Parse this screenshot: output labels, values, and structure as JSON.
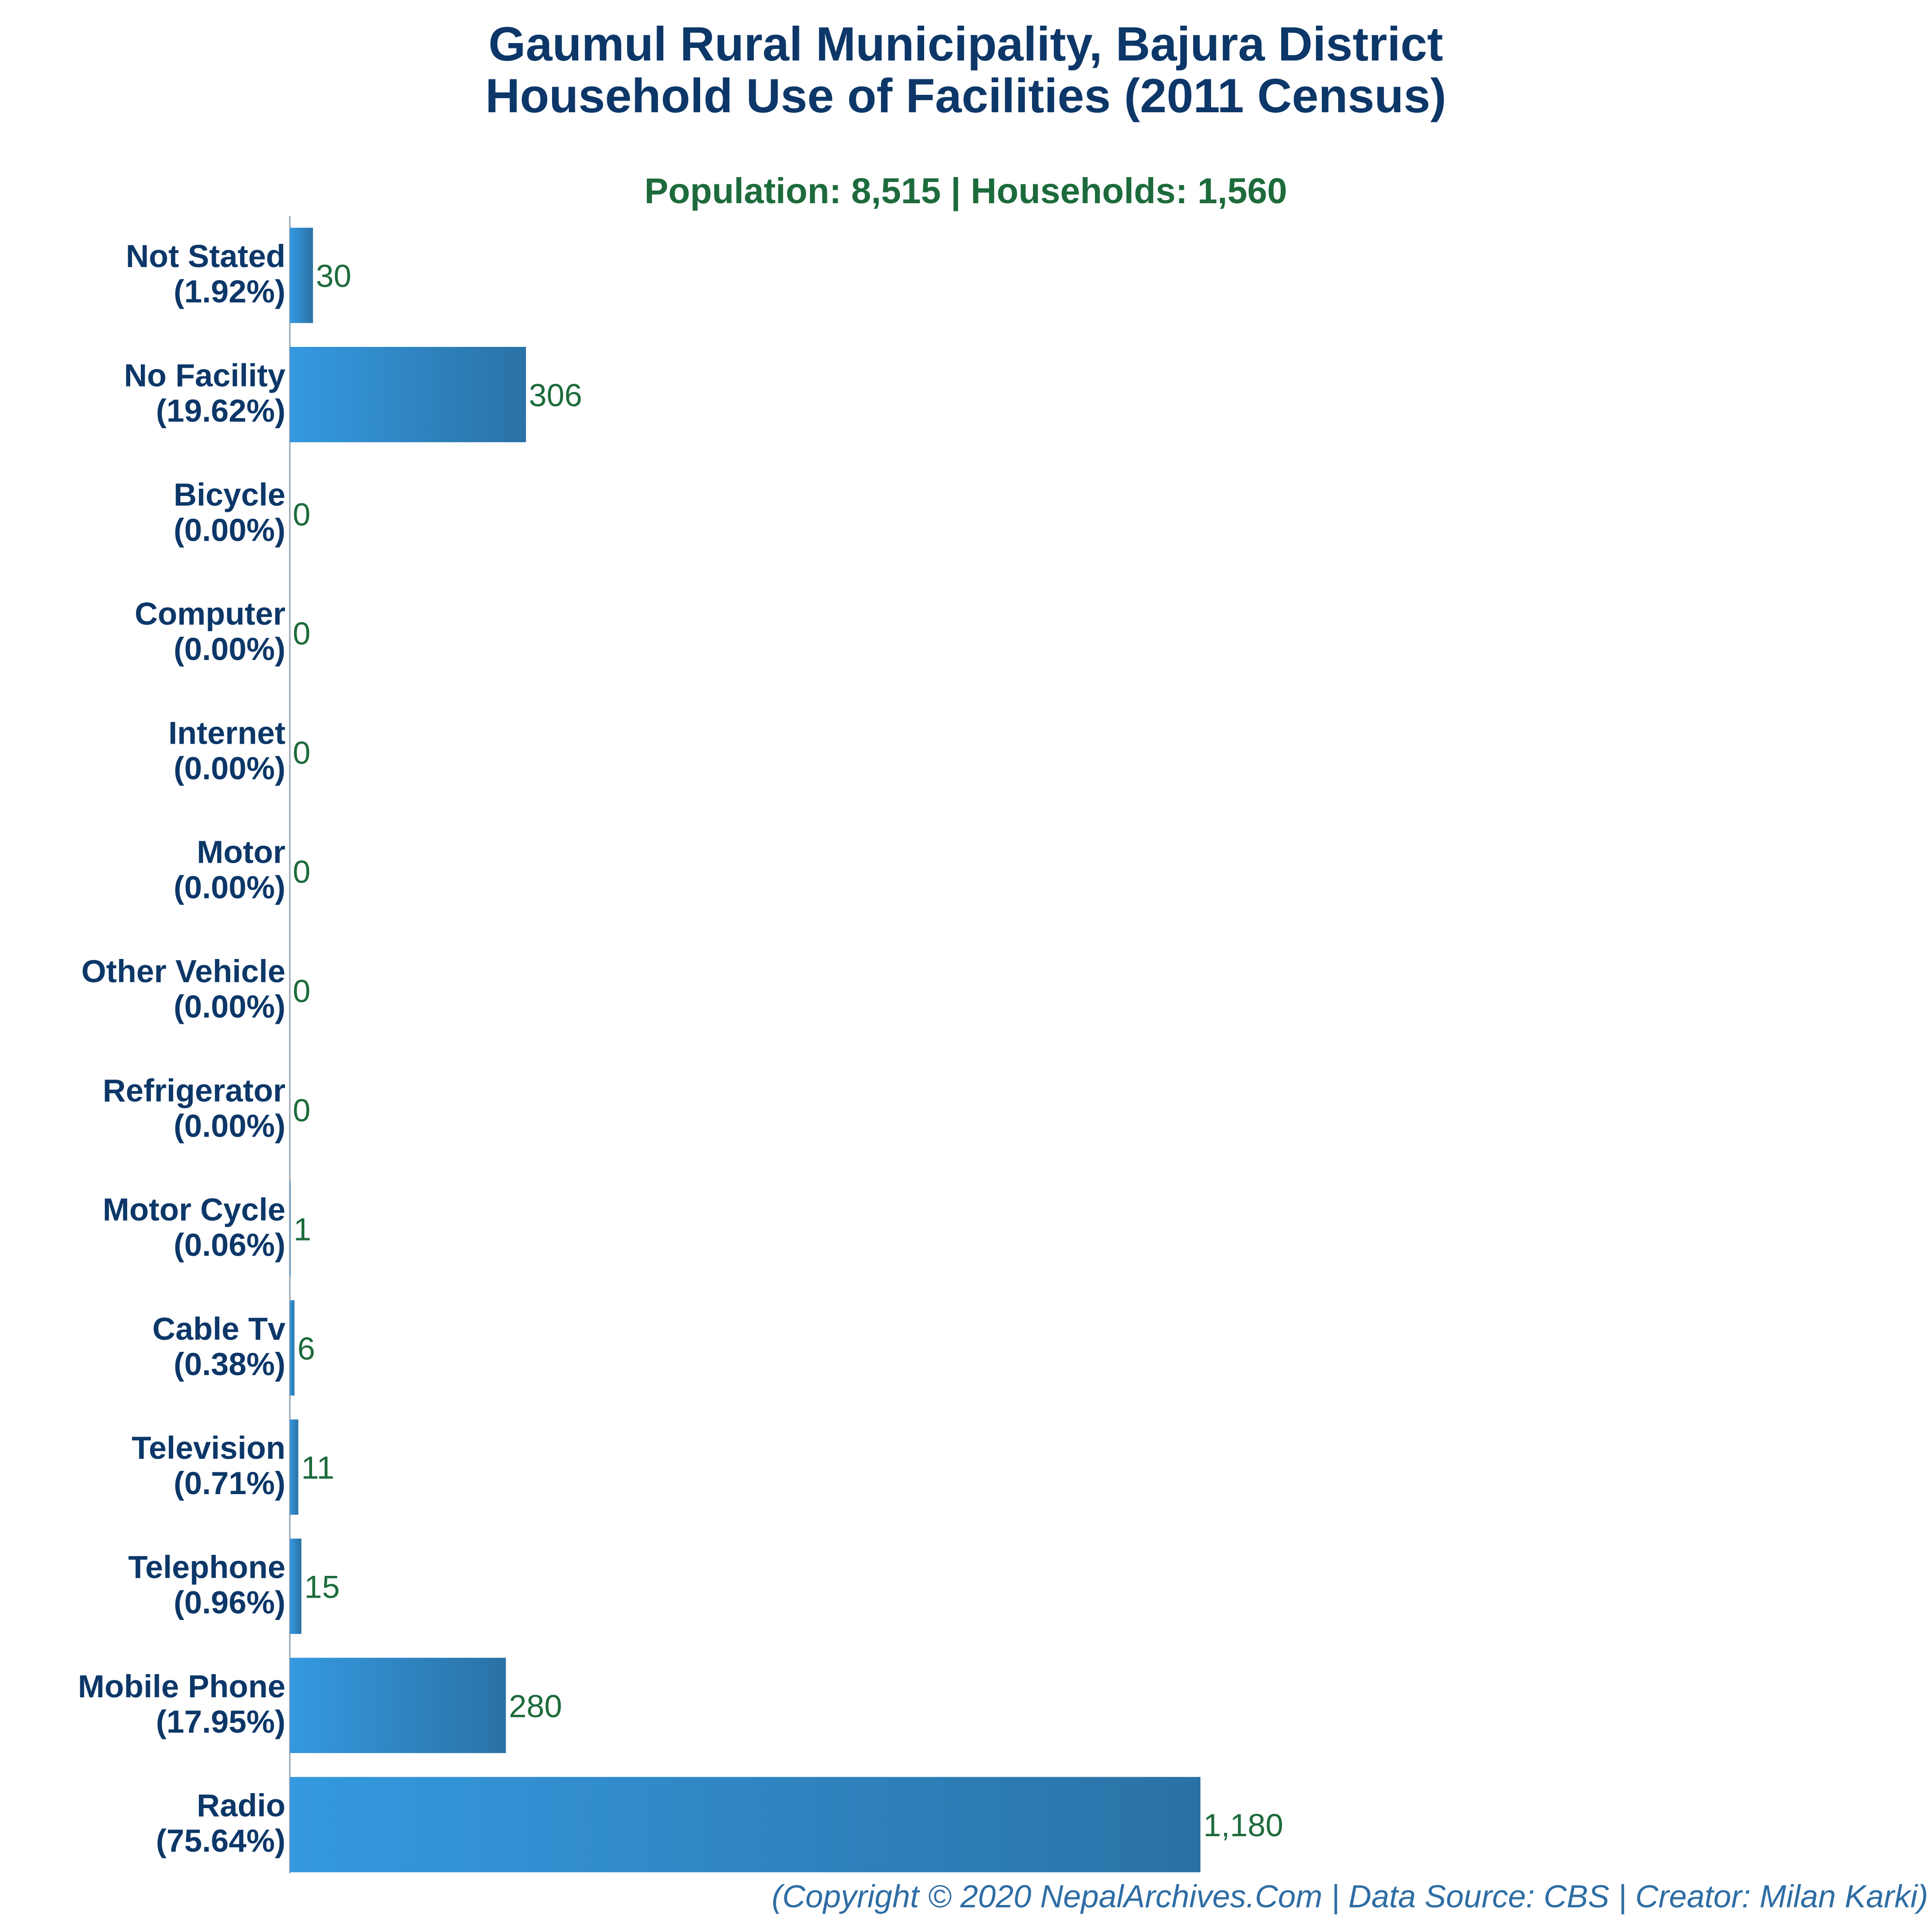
{
  "chart_data": {
    "type": "bar",
    "orientation": "horizontal",
    "title_line1": "Gaumul Rural Municipality, Bajura District",
    "title_line2": "Household Use of Facilities (2011 Census)",
    "subtitle": "Population: 8,515 | Households: 1,560",
    "credit": "(Copyright © 2020 NepalArchives.Com | Data Source: CBS | Creator: Milan Karki)",
    "categories": [
      "Not Stated",
      "No Facility",
      "Bicycle",
      "Computer",
      "Internet",
      "Motor",
      "Other Vehicle",
      "Refrigerator",
      "Motor Cycle",
      "Cable Tv",
      "Television",
      "Telephone",
      "Mobile Phone",
      "Radio"
    ],
    "percent_labels": [
      "(1.92%)",
      "(19.62%)",
      "(0.00%)",
      "(0.00%)",
      "(0.00%)",
      "(0.00%)",
      "(0.00%)",
      "(0.00%)",
      "(0.06%)",
      "(0.38%)",
      "(0.71%)",
      "(0.96%)",
      "(17.95%)",
      "(75.64%)"
    ],
    "values": [
      30,
      306,
      0,
      0,
      0,
      0,
      0,
      0,
      1,
      6,
      11,
      15,
      280,
      1180
    ],
    "value_labels": [
      "30",
      "306",
      "0",
      "0",
      "0",
      "0",
      "0",
      "0",
      "1",
      "6",
      "11",
      "15",
      "280",
      "1,180"
    ],
    "xlim": [
      0,
      1180
    ],
    "grid": false,
    "bar_gradient": [
      "#3599e0",
      "#2a72a5"
    ],
    "axis_color": "#9ba7b3"
  }
}
